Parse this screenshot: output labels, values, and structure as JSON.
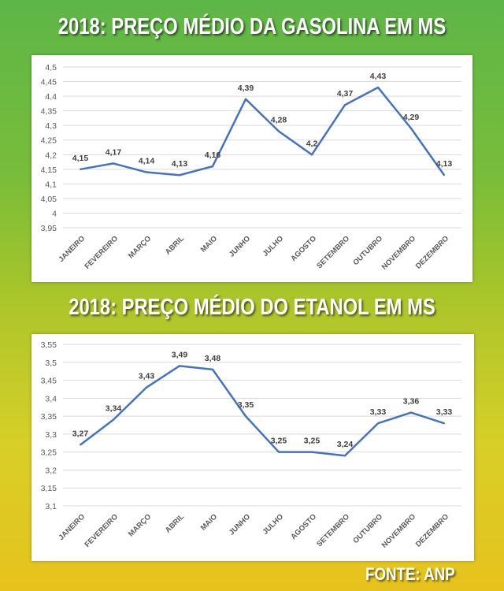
{
  "chart_data": [
    {
      "type": "line",
      "title": "2018: PREÇO MÉDIO DA GASOLINA EM MS",
      "categories": [
        "JANEIRO",
        "FEVEREIRO",
        "MARÇO",
        "ABRIL",
        "MAIO",
        "JUNHO",
        "JULHO",
        "AGOSTO",
        "SETEMBRO",
        "OUTUBRO",
        "NOVEMBRO",
        "DEZEMBRO"
      ],
      "values": [
        4.15,
        4.17,
        4.14,
        4.13,
        4.16,
        4.39,
        4.28,
        4.2,
        4.37,
        4.43,
        4.29,
        4.13
      ],
      "labels": [
        "4,15",
        "4,17",
        "4,14",
        "4,13",
        "4,16",
        "4,39",
        "4,28",
        "4,2",
        "4,37",
        "4,43",
        "4,29",
        "4,13"
      ],
      "yticks": [
        "3,95",
        "4",
        "4,05",
        "4,1",
        "4,15",
        "4,2",
        "4,25",
        "4,3",
        "4,35",
        "4,4",
        "4,45",
        "4,5"
      ],
      "ylim": [
        3.95,
        4.5
      ],
      "grid": true,
      "color": "#4472c4"
    },
    {
      "type": "line",
      "title": "2018: PREÇO MÉDIO DO ETANOL EM MS",
      "categories": [
        "JANEIRO",
        "FEVEREIRO",
        "MARÇO",
        "ABRIL",
        "MAIO",
        "JUNHO",
        "JULHO",
        "AGOSTO",
        "SETEMBRO",
        "OUTUBRO",
        "NOVEMBRO",
        "DEZEMBRO"
      ],
      "values": [
        3.27,
        3.34,
        3.43,
        3.49,
        3.48,
        3.35,
        3.25,
        3.25,
        3.24,
        3.33,
        3.36,
        3.33
      ],
      "labels": [
        "3,27",
        "3,34",
        "3,43",
        "3,49",
        "3,48",
        "3,35",
        "3,25",
        "3,25",
        "3,24",
        "3,33",
        "3,36",
        "3,33"
      ],
      "yticks": [
        "3,1",
        "3,15",
        "3,2",
        "3,25",
        "3,3",
        "3,35",
        "3,4",
        "3,45",
        "3,5",
        "3,55"
      ],
      "ylim": [
        3.1,
        3.55
      ],
      "grid": true,
      "color": "#4472c4"
    }
  ],
  "source": "FONTE: ANP"
}
